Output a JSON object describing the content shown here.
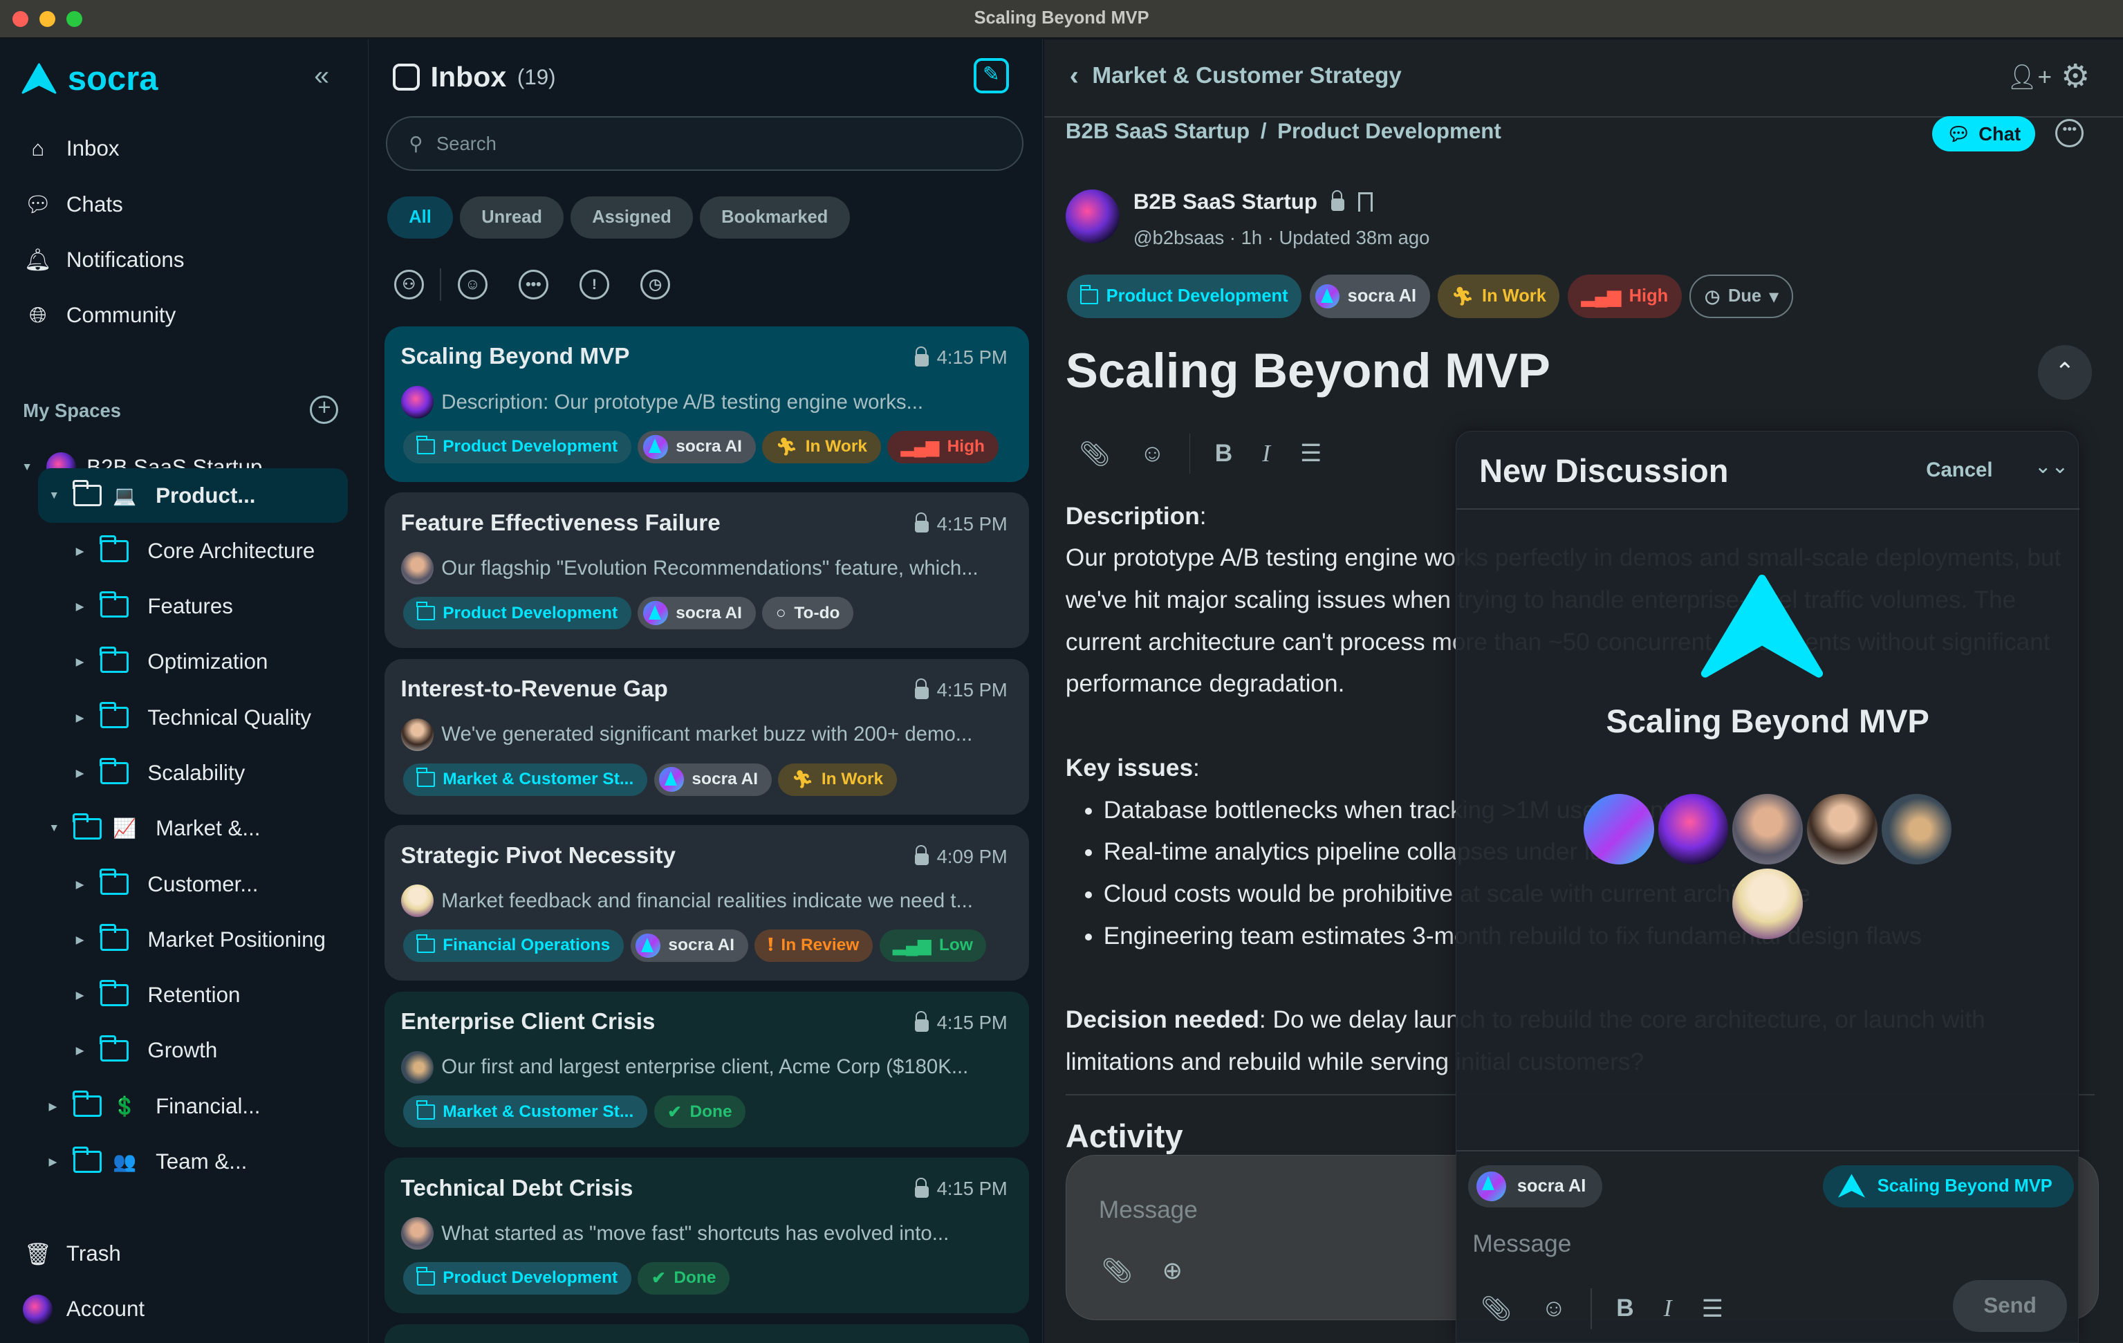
{
  "window": {
    "title": "Scaling Beyond MVP"
  },
  "colors": {
    "accent": "#00e5ff",
    "sidebar_bg": "#0f1820",
    "main_bg": "#1c2126",
    "selected_card": "#00485a"
  },
  "sidebar": {
    "brand": "socra",
    "nav": [
      {
        "label": "Inbox",
        "icon": "inbox-icon"
      },
      {
        "label": "Chats",
        "icon": "chat-icon"
      },
      {
        "label": "Notifications",
        "icon": "bell-icon"
      },
      {
        "label": "Community",
        "icon": "globe-icon"
      }
    ],
    "my_spaces_label": "My Spaces",
    "space": "B2B SaaS Startup",
    "tree": [
      {
        "label": "Product...",
        "emoji": "💻",
        "level": 1,
        "open": true,
        "selected": true
      },
      {
        "label": "Core Architecture",
        "level": 2
      },
      {
        "label": "Features",
        "level": 2
      },
      {
        "label": "Optimization",
        "level": 2
      },
      {
        "label": "Technical Quality",
        "level": 2
      },
      {
        "label": "Scalability",
        "level": 2
      },
      {
        "label": "Market &...",
        "emoji": "📈",
        "level": 1,
        "open": true
      },
      {
        "label": "Customer...",
        "level": 2
      },
      {
        "label": "Market Positioning",
        "level": 2
      },
      {
        "label": "Retention",
        "level": 2
      },
      {
        "label": "Growth",
        "level": 2
      },
      {
        "label": "Financial...",
        "emoji": "💲",
        "level": 1
      },
      {
        "label": "Team &...",
        "emoji": "👥",
        "level": 1
      }
    ],
    "trash": "Trash",
    "account": "Account"
  },
  "inbox": {
    "title": "Inbox",
    "count": "(19)",
    "search_placeholder": "Search",
    "filters": [
      "All",
      "Unread",
      "Assigned",
      "Bookmarked"
    ],
    "active_filter": "All",
    "filter_icons": [
      "org-icon",
      "user-icon",
      "more-icon",
      "alert-icon",
      "alarm-icon"
    ],
    "cards": [
      {
        "title": "Scaling Beyond MVP",
        "time": "4:15 PM",
        "desc": "Description: Our prototype A/B testing engine works...",
        "avatar": "zeus",
        "state": "selected",
        "tags": [
          {
            "type": "folder-t",
            "label": "Product Development"
          },
          {
            "type": "ai",
            "label": "socra AI"
          },
          {
            "type": "inwork",
            "label": "In Work"
          },
          {
            "type": "high",
            "label": "High"
          }
        ]
      },
      {
        "title": "Feature Effectiveness Failure",
        "time": "4:15 PM",
        "desc": "Our flagship \"Evolution Recommendations\" feature, which...",
        "avatar": "man",
        "state": "",
        "tags": [
          {
            "type": "folder-t",
            "label": "Product Development"
          },
          {
            "type": "ai",
            "label": "socra AI"
          },
          {
            "type": "todo",
            "label": "To-do"
          }
        ]
      },
      {
        "title": "Interest-to-Revenue Gap",
        "time": "4:15 PM",
        "desc": "We've generated significant market buzz with 200+ demo...",
        "avatar": "woman",
        "state": "",
        "tags": [
          {
            "type": "folder-t",
            "label": "Market & Customer St..."
          },
          {
            "type": "ai",
            "label": "socra AI"
          },
          {
            "type": "inwork",
            "label": "In Work"
          }
        ]
      },
      {
        "title": "Strategic Pivot Necessity",
        "time": "4:09 PM",
        "desc": "Market feedback and financial realities indicate we need t...",
        "avatar": "anime",
        "state": "",
        "tags": [
          {
            "type": "folder-t",
            "label": "Financial Operations"
          },
          {
            "type": "ai",
            "label": "socra AI"
          },
          {
            "type": "review",
            "label": "In Review"
          },
          {
            "type": "low",
            "label": "Low"
          }
        ]
      },
      {
        "title": "Enterprise Client Crisis",
        "time": "4:15 PM",
        "desc": "Our first and largest enterprise client, Acme Corp ($180K...",
        "avatar": "dog",
        "state": "done",
        "tags": [
          {
            "type": "folder-t",
            "label": "Market & Customer St..."
          },
          {
            "type": "done",
            "label": "Done"
          }
        ]
      },
      {
        "title": "Technical Debt Crisis",
        "time": "4:15 PM",
        "desc": "What started as \"move fast\" shortcuts has evolved into...",
        "avatar": "man",
        "state": "done",
        "tags": [
          {
            "type": "folder-t",
            "label": "Product Development"
          },
          {
            "type": "done",
            "label": "Done"
          }
        ]
      }
    ]
  },
  "main": {
    "back_title": "Market & Customer Strategy",
    "breadcrumb": [
      "B2B SaaS Startup",
      "/",
      "Product Development"
    ],
    "chat_button": "Chat",
    "author": {
      "name": "B2B SaaS Startup",
      "handle": "@b2bsaas · 1h · Updated 38m ago"
    },
    "tags": [
      {
        "type": "folder-t",
        "label": "Product Development"
      },
      {
        "type": "ai",
        "label": "socra AI"
      },
      {
        "type": "inwork",
        "label": "In Work"
      },
      {
        "type": "high",
        "label": "High"
      },
      {
        "type": "due",
        "label": "Due"
      }
    ],
    "title": "Scaling Beyond MVP",
    "description_label": "Description",
    "description": "Our prototype A/B testing engine works perfectly in demos and small-scale deployments, but we've hit major scaling issues when trying to handle enterprise-level traffic volumes. The current architecture can't process more than ~50 concurrent experiments without significant performance degradation.",
    "key_issues_label": "Key issues",
    "key_issues": [
      "Database bottlenecks when tracking >1M user events",
      "Real-time analytics pipeline collapses under load",
      "Cloud costs would be prohibitive at scale with current architecture",
      "Engineering team estimates 3-month rebuild to fix fundamental design flaws"
    ],
    "decision_label": "Decision needed",
    "decision": "Do we delay launch to rebuild the core architecture, or launch with limitations and rebuild while serving initial customers?",
    "activity_label": "Activity",
    "message_placeholder": "Message"
  },
  "new_discussion": {
    "title": "New Discussion",
    "cancel": "Cancel",
    "name": "Scaling Beyond MVP",
    "participants": [
      "ai",
      "zeus",
      "man",
      "woman",
      "dog",
      "anime"
    ],
    "ai_chip": "socra AI",
    "topic_chip": "Scaling Beyond MVP",
    "message_placeholder": "Message",
    "send": "Send"
  }
}
